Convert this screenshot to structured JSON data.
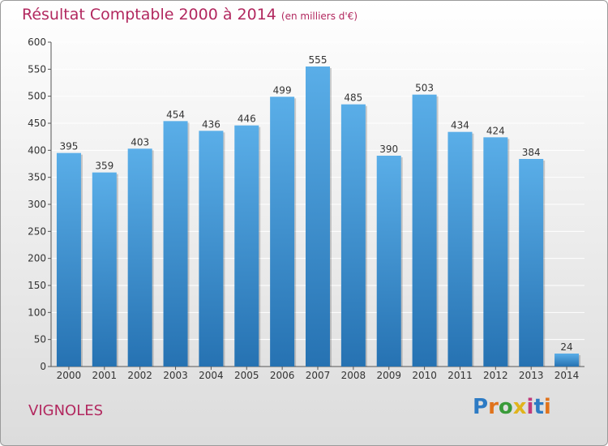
{
  "title": "Résultat Comptable 2000 à 2014",
  "subtitle": "(en milliers d'€)",
  "place": "VIGNOLES",
  "brand": "Proxiti",
  "colors": {
    "bar_top": "#5aaee8",
    "bar_bottom": "#2672b2",
    "grid": "#ffffff",
    "accent": "#b2285f"
  },
  "chart_data": {
    "type": "bar",
    "title": "Résultat Comptable 2000 à 2014",
    "subtitle": "(en milliers d'€)",
    "xlabel": "",
    "ylabel": "",
    "ylim": [
      0,
      600
    ],
    "yticks": [
      0,
      50,
      100,
      150,
      200,
      250,
      300,
      350,
      400,
      450,
      500,
      550,
      600
    ],
    "grid": true,
    "categories": [
      "2000",
      "2001",
      "2002",
      "2003",
      "2004",
      "2005",
      "2006",
      "2007",
      "2008",
      "2009",
      "2010",
      "2011",
      "2012",
      "2013",
      "2014"
    ],
    "values": [
      395,
      359,
      403,
      454,
      436,
      446,
      499,
      555,
      485,
      390,
      503,
      434,
      424,
      384,
      24
    ]
  }
}
